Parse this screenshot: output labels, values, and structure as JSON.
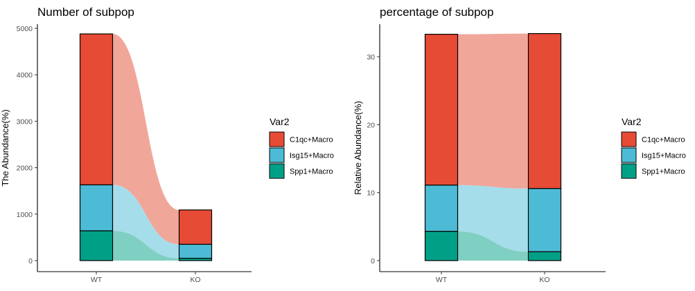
{
  "chart_data": [
    {
      "type": "bar",
      "subtype": "stacked-alluvial",
      "title": "Number of subpop",
      "xlabel": "",
      "ylabel": "The Abundance(%)",
      "categories": [
        "WT",
        "KO"
      ],
      "ylim": [
        0,
        5000
      ],
      "yticks": [
        0,
        1000,
        2000,
        3000,
        4000,
        5000
      ],
      "series": [
        {
          "name": "C1qc+Macro",
          "values": [
            3250,
            740
          ],
          "color": "#E64B35",
          "flow_color": "#F1A69A"
        },
        {
          "name": "Isg15+Macro",
          "values": [
            990,
            300
          ],
          "color": "#4DBBD5",
          "flow_color": "#A6DDEA"
        },
        {
          "name": "Spp1+Macro",
          "values": [
            640,
            50
          ],
          "color": "#00A087",
          "flow_color": "#80CFC3"
        }
      ],
      "legend": {
        "title": "Var2",
        "position": "right"
      },
      "grid": false
    },
    {
      "type": "bar",
      "subtype": "stacked-alluvial",
      "title": "percentage of subpop",
      "xlabel": "",
      "ylabel": "Relative Abundance(%)",
      "categories": [
        "WT",
        "KO"
      ],
      "ylim": [
        0,
        34
      ],
      "yticks": [
        0,
        10,
        20,
        30
      ],
      "series": [
        {
          "name": "C1qc+Macro",
          "values": [
            22.2,
            22.8
          ],
          "color": "#E64B35",
          "flow_color": "#F1A69A"
        },
        {
          "name": "Isg15+Macro",
          "values": [
            6.8,
            9.3
          ],
          "color": "#4DBBD5",
          "flow_color": "#A6DDEA"
        },
        {
          "name": "Spp1+Macro",
          "values": [
            4.3,
            1.3
          ],
          "color": "#00A087",
          "flow_color": "#80CFC3"
        }
      ],
      "legend": {
        "title": "Var2",
        "position": "right"
      },
      "grid": false
    }
  ]
}
